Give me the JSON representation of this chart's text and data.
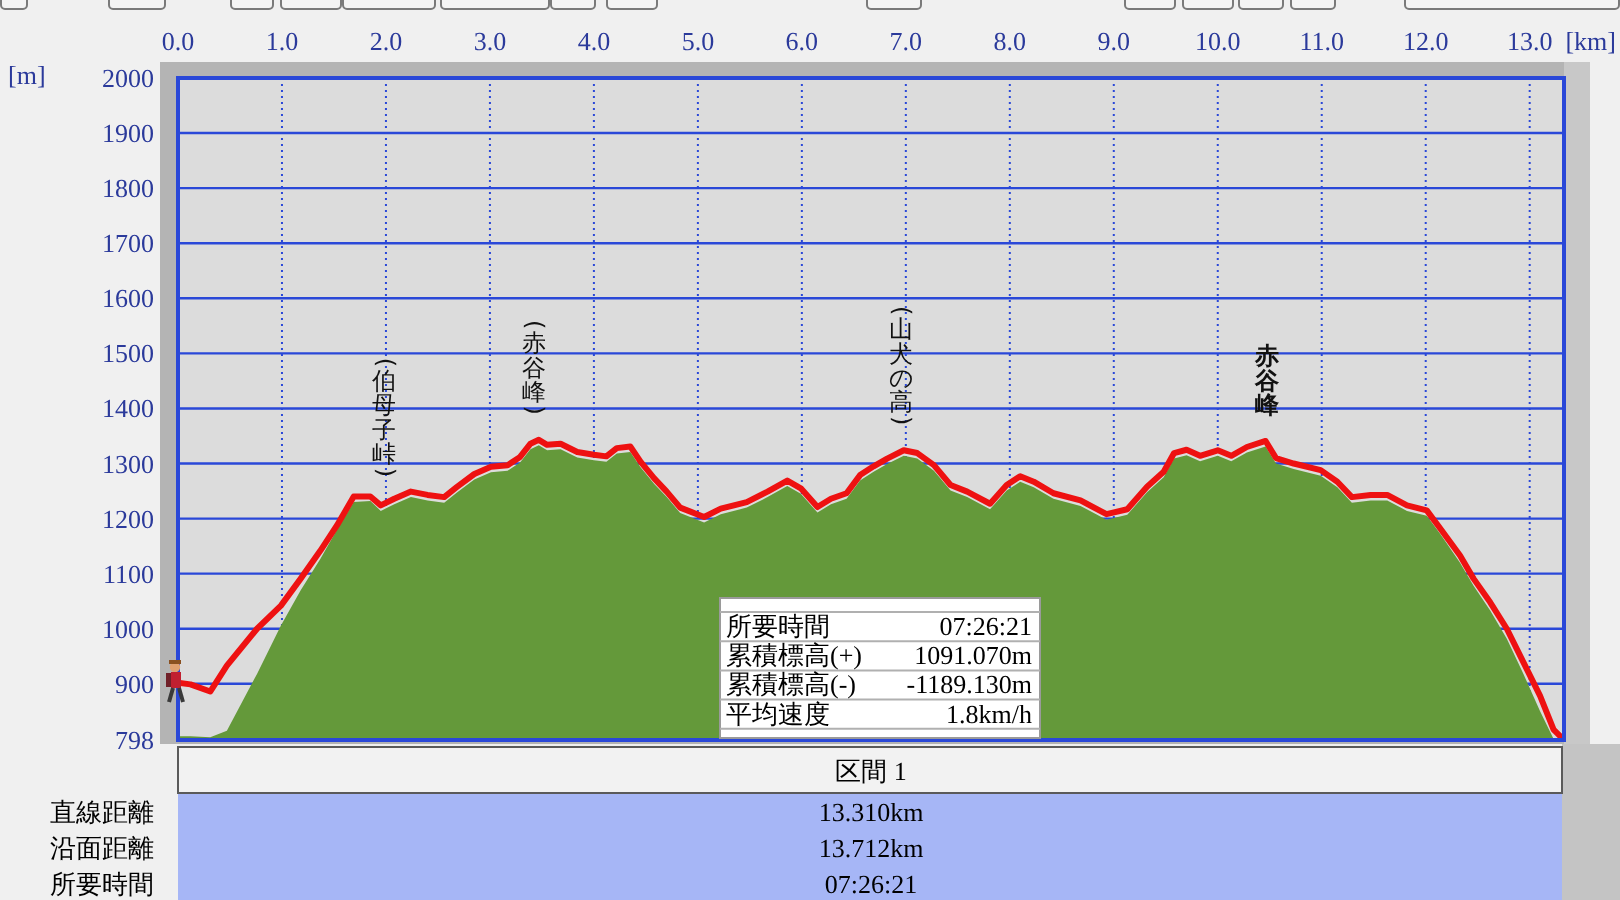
{
  "chart_data": {
    "type": "area",
    "xlabel": "[km]",
    "ylabel": "[m]",
    "x": [
      0,
      0.12,
      0.31,
      0.47,
      0.76,
      0.99,
      1.18,
      1.37,
      1.53,
      1.69,
      1.85,
      1.95,
      2.08,
      2.24,
      2.4,
      2.56,
      2.68,
      2.85,
      3.01,
      3.17,
      3.29,
      3.39,
      3.47,
      3.55,
      3.68,
      3.84,
      4,
      4.12,
      4.22,
      4.35,
      4.45,
      4.58,
      4.7,
      4.83,
      5.06,
      5.22,
      5.47,
      5.67,
      5.86,
      5.99,
      6.15,
      6.28,
      6.43,
      6.56,
      6.69,
      6.82,
      6.98,
      7.11,
      7.27,
      7.43,
      7.59,
      7.81,
      7.97,
      8.1,
      8.23,
      8.42,
      8.68,
      8.93,
      9.13,
      9.32,
      9.48,
      9.58,
      9.7,
      9.83,
      10,
      10.13,
      10.28,
      10.46,
      10.56,
      10.73,
      10.99,
      11.15,
      11.29,
      11.47,
      11.63,
      11.82,
      12.01,
      12.14,
      12.33,
      12.46,
      12.62,
      12.78,
      12.94,
      13.1,
      13.23,
      13.31
    ],
    "series": [
      {
        "type": "area",
        "color": "#64993a",
        "values": [
          805,
          805,
          803,
          815,
          918,
          1006,
          1070,
          1127,
          1180,
          1230,
          1232,
          1214,
          1226,
          1239,
          1233,
          1229,
          1247,
          1271,
          1284,
          1287,
          1302,
          1326,
          1333,
          1324,
          1326,
          1311,
          1306,
          1303,
          1318,
          1321,
          1293,
          1263,
          1239,
          1210,
          1193,
          1208,
          1220,
          1239,
          1259,
          1245,
          1211,
          1226,
          1236,
          1269,
          1285,
          1299,
          1314,
          1309,
          1287,
          1251,
          1239,
          1217,
          1251,
          1267,
          1257,
          1236,
          1223,
          1198,
          1207,
          1248,
          1275,
          1309,
          1315,
          1304,
          1314,
          1304,
          1320,
          1331,
          1300,
          1290,
          1278,
          1257,
          1229,
          1233,
          1233,
          1214,
          1205,
          1172,
          1120,
          1078,
          1033,
          982,
          918,
          850,
          800,
          798
        ]
      },
      {
        "type": "line",
        "color": "#ee1111",
        "values": [
          902,
          899,
          886,
          933,
          1000,
          1042,
          1091,
          1142,
          1188,
          1240,
          1240,
          1224,
          1236,
          1249,
          1243,
          1239,
          1257,
          1281,
          1294,
          1297,
          1312,
          1336,
          1343,
          1334,
          1336,
          1321,
          1316,
          1313,
          1328,
          1331,
          1303,
          1273,
          1249,
          1220,
          1203,
          1218,
          1230,
          1249,
          1269,
          1255,
          1221,
          1236,
          1246,
          1279,
          1295,
          1309,
          1324,
          1319,
          1297,
          1261,
          1249,
          1227,
          1261,
          1277,
          1267,
          1246,
          1233,
          1208,
          1217,
          1258,
          1285,
          1319,
          1325,
          1314,
          1324,
          1314,
          1330,
          1341,
          1310,
          1300,
          1288,
          1267,
          1239,
          1243,
          1243,
          1224,
          1215,
          1182,
          1133,
          1091,
          1048,
          1000,
          939,
          878,
          817,
          802
        ]
      }
    ],
    "xlim": [
      0,
      13.33
    ],
    "xticks": [
      {
        "value": 0,
        "label": "0.0"
      },
      {
        "value": 1,
        "label": "1.0"
      },
      {
        "value": 2,
        "label": "2.0"
      },
      {
        "value": 3,
        "label": "3.0"
      },
      {
        "value": 4,
        "label": "4.0"
      },
      {
        "value": 5,
        "label": "5.0"
      },
      {
        "value": 6,
        "label": "6.0"
      },
      {
        "value": 7,
        "label": "7.0"
      },
      {
        "value": 8,
        "label": "8.0"
      },
      {
        "value": 9,
        "label": "9.0"
      },
      {
        "value": 10,
        "label": "10.0"
      },
      {
        "value": 11,
        "label": "11.0"
      },
      {
        "value": 12,
        "label": "12.0"
      },
      {
        "value": 13,
        "label": "13.0"
      }
    ],
    "ylim": [
      798,
      2000
    ],
    "yticks": [
      798,
      900,
      1000,
      1100,
      1200,
      1300,
      1400,
      1500,
      1600,
      1700,
      1800,
      1900,
      2000
    ],
    "grid": true,
    "annotations": [
      {
        "text": "(伯母子峠)",
        "x": 1.98,
        "y": 1230
      },
      {
        "text": "(赤谷峰)",
        "x": 3.42,
        "y": 1343
      },
      {
        "text": "(山犬の高)",
        "x": 6.95,
        "y": 1324
      },
      {
        "text": "赤谷峰",
        "x": 10.47,
        "y": 1341
      },
      "所要時間",
      "07:26:21",
      "累積標高(+)",
      "1091.070m",
      "累積標高(-)",
      "-1189.130m",
      "平均速度",
      "1.8km/h",
      "区間 1",
      "直線距離",
      "13.310km",
      "沿面距離",
      "13.712km",
      "所要時間",
      "07:26:21"
    ]
  }
}
